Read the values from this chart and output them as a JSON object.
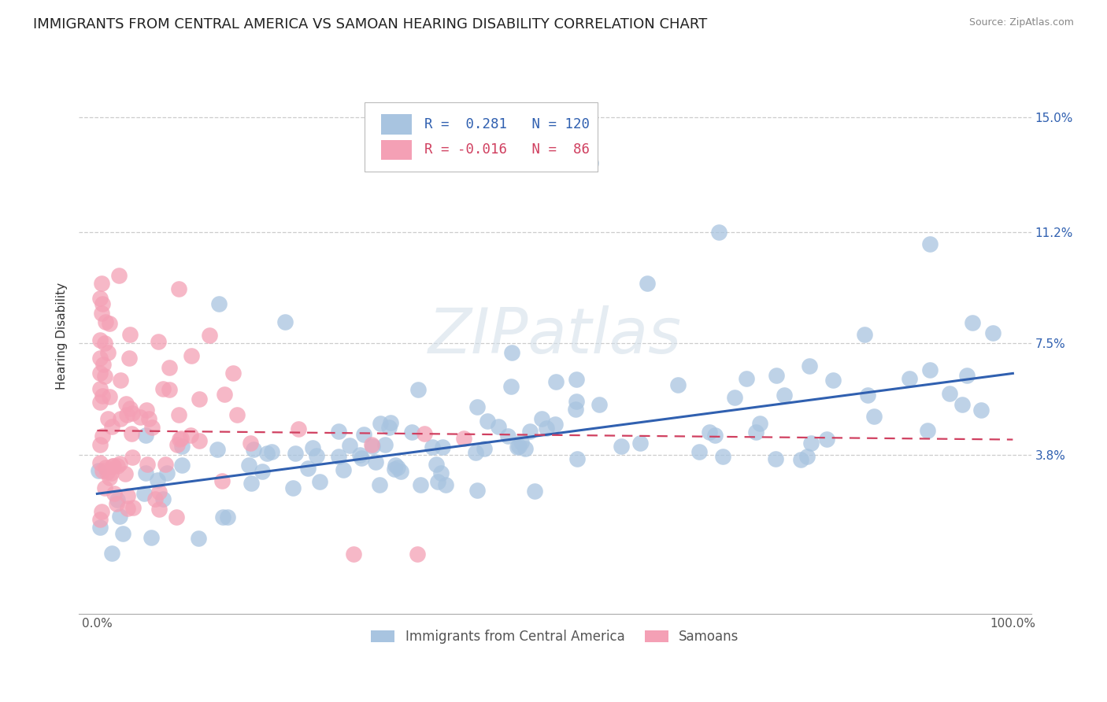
{
  "title": "IMMIGRANTS FROM CENTRAL AMERICA VS SAMOAN HEARING DISABILITY CORRELATION CHART",
  "source_text": "Source: ZipAtlas.com",
  "ylabel": "Hearing Disability",
  "xlim": [
    -2,
    102
  ],
  "ylim": [
    -1.5,
    17.0
  ],
  "yticks": [
    3.8,
    7.5,
    11.2,
    15.0
  ],
  "ytick_labels": [
    "3.8%",
    "7.5%",
    "11.2%",
    "15.0%"
  ],
  "xtick_labels": [
    "0.0%",
    "100.0%"
  ],
  "blue_R": 0.281,
  "blue_N": 120,
  "pink_R": -0.016,
  "pink_N": 86,
  "blue_color": "#a8c4e0",
  "blue_line_color": "#3060b0",
  "pink_color": "#f4a0b5",
  "pink_line_color": "#d04060",
  "blue_label": "Immigrants from Central America",
  "pink_label": "Samoans",
  "watermark": "ZIPatlas",
  "background_color": "#ffffff",
  "title_fontsize": 13,
  "axis_label_fontsize": 11,
  "tick_fontsize": 11,
  "blue_line_start_y": 2.5,
  "blue_line_end_y": 6.5,
  "pink_line_start_y": 4.6,
  "pink_line_end_y": 4.3
}
